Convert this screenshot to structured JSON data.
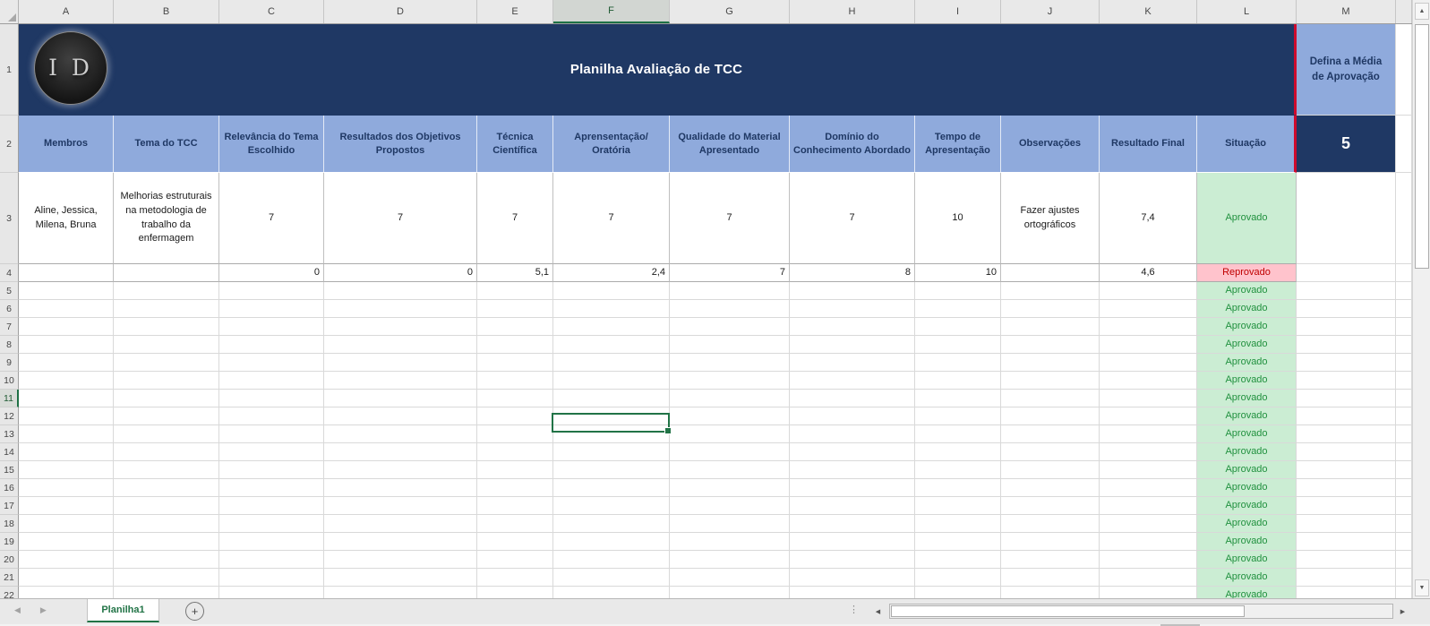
{
  "columns": {
    "letters": [
      "A",
      "B",
      "C",
      "D",
      "E",
      "F",
      "G",
      "H",
      "I",
      "J",
      "K",
      "L",
      "M"
    ],
    "selected_letter": "F"
  },
  "rows": {
    "count": 22,
    "selected_number": 11
  },
  "title_band": {
    "logo_text": "I D",
    "title": "Planilha Avaliação de TCC",
    "right_label": "Defina a Média de Aprovação"
  },
  "header_band": {
    "columns": [
      "Membros",
      "Tema do TCC",
      "Relevância do Tema Escolhido",
      "Resultados dos Objetivos Propostos",
      "Técnica Científica",
      "Aprensentação/ Oratória",
      "Qualidade do Material Apresentado",
      "Domínio do Conhecimento Abordado",
      "Tempo de Apresentação",
      "Observações",
      "Resultado Final",
      "Situação"
    ],
    "approval_average": "5"
  },
  "row3": {
    "members": "Aline, Jessica, Milena,  Bruna",
    "theme": "Melhorias estruturais na metodologia de trabalho da enfermagem",
    "scores": [
      "7",
      "7",
      "7",
      "7",
      "7",
      "7",
      "10"
    ],
    "observations": "Fazer ajustes ortográficos",
    "final_result": "7,4",
    "status": "Aprovado"
  },
  "row4": {
    "scores": [
      "0",
      "0",
      "5,1",
      "2,4",
      "7",
      "8",
      "10"
    ],
    "observations": "",
    "final_result": "4,6",
    "status": "Reprovado"
  },
  "status_column": {
    "label": "Aprovado",
    "rows": [
      5,
      6,
      7,
      8,
      9,
      10,
      11,
      12,
      13,
      14,
      15,
      16,
      17,
      18,
      19,
      20,
      21,
      22
    ]
  },
  "tab_bar": {
    "active_tab": "Planilha1",
    "add_sheet_label": "+"
  },
  "icons": {
    "up": "▲",
    "down": "▼",
    "left": "◀",
    "right": "▶",
    "dots": "⋮"
  },
  "colors": {
    "title_bg": "#1F3864",
    "header_bg": "#8FAADC",
    "media_cell_bg": "#1F3864",
    "approved_text": "#21913F",
    "approved_bg": "#CBEDD3",
    "reproved_text": "#C00000",
    "reproved_bg": "#FFC3CC",
    "red_divider": "#CF0A2C",
    "selection_green": "#217346"
  }
}
